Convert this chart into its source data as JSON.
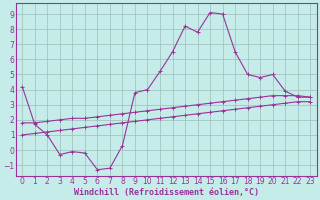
{
  "background_color": "#c5ece8",
  "grid_color": "#9bbfba",
  "line_color": "#993399",
  "spine_color": "#993399",
  "xlabel": "Windchill (Refroidissement éolien,°C)",
  "xlim": [
    -0.5,
    23.5
  ],
  "ylim": [
    -1.7,
    9.7
  ],
  "yticks": [
    -1,
    0,
    1,
    2,
    3,
    4,
    5,
    6,
    7,
    8,
    9
  ],
  "xticks": [
    0,
    1,
    2,
    3,
    4,
    5,
    6,
    7,
    8,
    9,
    10,
    11,
    12,
    13,
    14,
    15,
    16,
    17,
    18,
    19,
    20,
    21,
    22,
    23
  ],
  "line1_x": [
    0,
    1,
    2,
    3,
    4,
    5,
    6,
    7,
    8,
    9,
    10,
    11,
    12,
    13,
    14,
    15,
    16,
    17,
    18,
    19,
    20,
    21,
    22,
    23
  ],
  "line1_y": [
    4.2,
    1.7,
    1.0,
    -0.3,
    -0.1,
    -0.2,
    -1.3,
    -1.2,
    0.3,
    3.8,
    4.0,
    5.2,
    6.5,
    8.2,
    7.8,
    9.1,
    9.0,
    6.5,
    5.0,
    4.8,
    5.0,
    3.9,
    3.5,
    3.5
  ],
  "line2_x": [
    0,
    1,
    2,
    3,
    4,
    5,
    6,
    7,
    8,
    9,
    10,
    11,
    12,
    13,
    14,
    15,
    16,
    17,
    18,
    19,
    20,
    21,
    22,
    23
  ],
  "line2_y": [
    1.8,
    1.8,
    1.9,
    2.0,
    2.1,
    2.1,
    2.2,
    2.3,
    2.4,
    2.5,
    2.6,
    2.7,
    2.8,
    2.9,
    3.0,
    3.1,
    3.2,
    3.3,
    3.4,
    3.5,
    3.6,
    3.6,
    3.6,
    3.5
  ],
  "line3_x": [
    0,
    1,
    2,
    3,
    4,
    5,
    6,
    7,
    8,
    9,
    10,
    11,
    12,
    13,
    14,
    15,
    16,
    17,
    18,
    19,
    20,
    21,
    22,
    23
  ],
  "line3_y": [
    1.0,
    1.1,
    1.2,
    1.3,
    1.4,
    1.5,
    1.6,
    1.7,
    1.8,
    1.9,
    2.0,
    2.1,
    2.2,
    2.3,
    2.4,
    2.5,
    2.6,
    2.7,
    2.8,
    2.9,
    3.0,
    3.1,
    3.2,
    3.2
  ],
  "tick_font_size": 5.5,
  "label_font_size": 6.0,
  "lw": 0.8,
  "marker_size": 2.5
}
